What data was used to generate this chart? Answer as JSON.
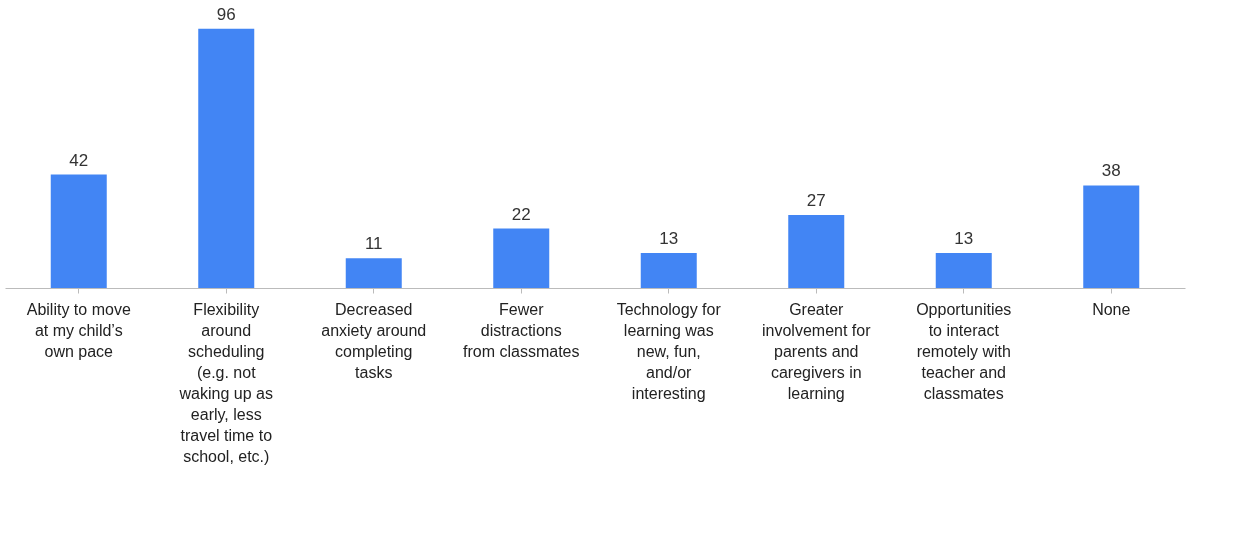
{
  "chart_data": {
    "type": "bar",
    "categories": [
      "Ability to move at my child’s own pace",
      "Flexibility around scheduling (e.g. not waking up as early, less travel time to school, etc.)",
      "Decreased anxiety around completing tasks",
      "Fewer distractions from classmates",
      "Technology for learning was new, fun, and/or interesting",
      "Greater involvement for parents and caregivers in learning",
      "Opportunities to interact remotely with teacher and classmates",
      "None"
    ],
    "values": [
      42,
      96,
      11,
      22,
      13,
      27,
      13,
      38
    ],
    "color": "#4285f4",
    "data_labels": true
  }
}
